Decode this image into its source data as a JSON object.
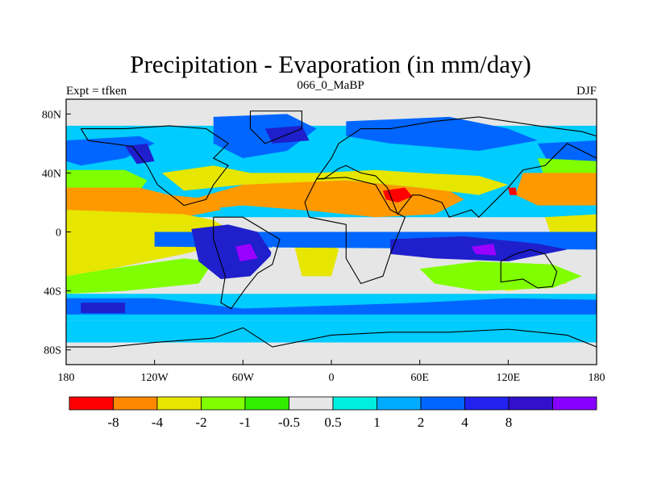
{
  "header": {
    "title": "Precipitation - Evaporation (in mm/day)",
    "left_label": "Expt = tfken",
    "center_label": "066_0_MaBP",
    "right_label": "DJF"
  },
  "map": {
    "lon_range": [
      -180,
      180
    ],
    "lat_range": [
      -90,
      90
    ],
    "x_ticks": [
      {
        "lon": -180,
        "label": "180"
      },
      {
        "lon": -120,
        "label": "120W"
      },
      {
        "lon": -60,
        "label": "60W"
      },
      {
        "lon": 0,
        "label": "0"
      },
      {
        "lon": 60,
        "label": "60E"
      },
      {
        "lon": 120,
        "label": "120E"
      },
      {
        "lon": 180,
        "label": "180"
      }
    ],
    "y_ticks": [
      {
        "lat": 80,
        "label": "80N"
      },
      {
        "lat": 40,
        "label": "40N"
      },
      {
        "lat": 0,
        "label": "0"
      },
      {
        "lat": -40,
        "label": "40S"
      },
      {
        "lat": -80,
        "label": "80S"
      }
    ],
    "background_color": "#e6e6e6",
    "regions": [
      {
        "color": "#00ccff",
        "poly": [
          [
            -180,
            72
          ],
          [
            180,
            72
          ],
          [
            180,
            10
          ],
          [
            -180,
            10
          ]
        ]
      },
      {
        "color": "#0066ff",
        "poly": [
          [
            -180,
            62
          ],
          [
            -130,
            65
          ],
          [
            -120,
            60
          ],
          [
            -140,
            50
          ],
          [
            -170,
            45
          ],
          [
            -180,
            48
          ]
        ]
      },
      {
        "color": "#0066ff",
        "poly": [
          [
            -80,
            78
          ],
          [
            -30,
            80
          ],
          [
            -10,
            70
          ],
          [
            -30,
            55
          ],
          [
            -60,
            50
          ],
          [
            -80,
            60
          ]
        ]
      },
      {
        "color": "#0066ff",
        "poly": [
          [
            10,
            75
          ],
          [
            80,
            78
          ],
          [
            120,
            70
          ],
          [
            140,
            62
          ],
          [
            100,
            55
          ],
          [
            40,
            60
          ],
          [
            10,
            65
          ]
        ]
      },
      {
        "color": "#0066ff",
        "poly": [
          [
            140,
            60
          ],
          [
            180,
            62
          ],
          [
            180,
            42
          ],
          [
            150,
            42
          ]
        ]
      },
      {
        "color": "#1f1fcc",
        "poly": [
          [
            -140,
            58
          ],
          [
            -125,
            60
          ],
          [
            -120,
            48
          ],
          [
            -132,
            46
          ]
        ]
      },
      {
        "color": "#1f1fcc",
        "poly": [
          [
            -45,
            70
          ],
          [
            -20,
            72
          ],
          [
            -15,
            62
          ],
          [
            -40,
            60
          ]
        ]
      },
      {
        "color": "#80ff00",
        "poly": [
          [
            -180,
            42
          ],
          [
            -140,
            42
          ],
          [
            -125,
            35
          ],
          [
            -130,
            28
          ],
          [
            -180,
            30
          ]
        ]
      },
      {
        "color": "#80ff00",
        "poly": [
          [
            140,
            50
          ],
          [
            180,
            48
          ],
          [
            180,
            38
          ],
          [
            145,
            36
          ]
        ]
      },
      {
        "color": "#ff9900",
        "poly": [
          [
            -180,
            30
          ],
          [
            -130,
            30
          ],
          [
            -110,
            25
          ],
          [
            -80,
            22
          ],
          [
            -75,
            15
          ],
          [
            -100,
            10
          ],
          [
            -180,
            15
          ]
        ]
      },
      {
        "color": "#ff9900",
        "poly": [
          [
            130,
            40
          ],
          [
            180,
            40
          ],
          [
            180,
            18
          ],
          [
            140,
            18
          ],
          [
            125,
            25
          ]
        ]
      },
      {
        "color": "#ff9900",
        "poly": [
          [
            -95,
            22
          ],
          [
            -60,
            32
          ],
          [
            -20,
            35
          ],
          [
            10,
            35
          ],
          [
            40,
            32
          ],
          [
            60,
            30
          ],
          [
            80,
            28
          ],
          [
            90,
            22
          ],
          [
            70,
            12
          ],
          [
            30,
            10
          ],
          [
            -10,
            14
          ],
          [
            -60,
            18
          ],
          [
            -90,
            15
          ]
        ]
      },
      {
        "color": "#e6e600",
        "poly": [
          [
            -115,
            40
          ],
          [
            -80,
            45
          ],
          [
            -55,
            40
          ],
          [
            -10,
            40
          ],
          [
            30,
            42
          ],
          [
            60,
            40
          ],
          [
            100,
            38
          ],
          [
            120,
            32
          ],
          [
            100,
            25
          ],
          [
            60,
            30
          ],
          [
            10,
            35
          ],
          [
            -60,
            32
          ],
          [
            -100,
            28
          ]
        ]
      },
      {
        "color": "#e6e600",
        "poly": [
          [
            -180,
            15
          ],
          [
            -100,
            12
          ],
          [
            -80,
            8
          ],
          [
            -70,
            2
          ],
          [
            -80,
            -10
          ],
          [
            -100,
            -15
          ],
          [
            -150,
            -25
          ],
          [
            -180,
            -30
          ]
        ]
      },
      {
        "color": "#e6e600",
        "poly": [
          [
            -25,
            -10
          ],
          [
            -5,
            -5
          ],
          [
            5,
            -12
          ],
          [
            0,
            -30
          ],
          [
            -20,
            -30
          ]
        ]
      },
      {
        "color": "#e6e600",
        "poly": [
          [
            100,
            -25
          ],
          [
            150,
            -25
          ],
          [
            160,
            -35
          ],
          [
            120,
            -40
          ],
          [
            100,
            -35
          ]
        ]
      },
      {
        "color": "#e6e600",
        "poly": [
          [
            145,
            10
          ],
          [
            180,
            12
          ],
          [
            180,
            -5
          ],
          [
            150,
            -5
          ]
        ]
      },
      {
        "color": "#80ff00",
        "poly": [
          [
            -180,
            -30
          ],
          [
            -150,
            -25
          ],
          [
            -100,
            -18
          ],
          [
            -80,
            -20
          ],
          [
            -90,
            -35
          ],
          [
            -140,
            -40
          ],
          [
            -180,
            -42
          ]
        ]
      },
      {
        "color": "#80ff00",
        "poly": [
          [
            60,
            -25
          ],
          [
            100,
            -20
          ],
          [
            150,
            -22
          ],
          [
            170,
            -30
          ],
          [
            150,
            -38
          ],
          [
            100,
            -40
          ],
          [
            70,
            -35
          ]
        ]
      },
      {
        "color": "#ff0000",
        "poly": [
          [
            35,
            28
          ],
          [
            50,
            30
          ],
          [
            55,
            24
          ],
          [
            45,
            20
          ],
          [
            37,
            22
          ]
        ]
      },
      {
        "color": "#ff0000",
        "poly": [
          [
            120,
            30
          ],
          [
            125,
            30
          ],
          [
            126,
            25
          ],
          [
            121,
            25
          ]
        ]
      },
      {
        "color": "#0066ff",
        "poly": [
          [
            -120,
            0
          ],
          [
            180,
            0
          ],
          [
            180,
            -12
          ],
          [
            -120,
            -10
          ]
        ]
      },
      {
        "color": "#1f1fcc",
        "poly": [
          [
            -95,
            2
          ],
          [
            -70,
            5
          ],
          [
            -50,
            0
          ],
          [
            -40,
            -15
          ],
          [
            -55,
            -30
          ],
          [
            -75,
            -32
          ],
          [
            -90,
            -20
          ]
        ]
      },
      {
        "color": "#1f1fcc",
        "poly": [
          [
            40,
            -5
          ],
          [
            90,
            -3
          ],
          [
            140,
            -8
          ],
          [
            160,
            -12
          ],
          [
            120,
            -20
          ],
          [
            70,
            -18
          ],
          [
            40,
            -15
          ]
        ]
      },
      {
        "color": "#9900ff",
        "poly": [
          [
            -65,
            -10
          ],
          [
            -55,
            -8
          ],
          [
            -50,
            -18
          ],
          [
            -62,
            -20
          ]
        ]
      },
      {
        "color": "#9900ff",
        "poly": [
          [
            95,
            -10
          ],
          [
            110,
            -8
          ],
          [
            112,
            -16
          ],
          [
            98,
            -15
          ]
        ]
      },
      {
        "color": "#e6e6e6",
        "poly": [
          [
            -40,
            -10
          ],
          [
            -30,
            -12
          ],
          [
            -25,
            -25
          ],
          [
            -35,
            -30
          ],
          [
            -42,
            -20
          ]
        ]
      },
      {
        "color": "#00ccff",
        "poly": [
          [
            -180,
            -42
          ],
          [
            180,
            -42
          ],
          [
            180,
            -60
          ],
          [
            -180,
            -60
          ]
        ]
      },
      {
        "color": "#0066ff",
        "poly": [
          [
            -180,
            -45
          ],
          [
            -120,
            -45
          ],
          [
            -60,
            -52
          ],
          [
            0,
            -50
          ],
          [
            60,
            -48
          ],
          [
            120,
            -45
          ],
          [
            180,
            -46
          ],
          [
            180,
            -56
          ],
          [
            -180,
            -56
          ]
        ]
      },
      {
        "color": "#1f1fcc",
        "poly": [
          [
            -170,
            -48
          ],
          [
            -140,
            -48
          ],
          [
            -140,
            -55
          ],
          [
            -170,
            -55
          ]
        ]
      },
      {
        "color": "#00ccff",
        "poly": [
          [
            -180,
            -60
          ],
          [
            180,
            -60
          ],
          [
            180,
            -75
          ],
          [
            -180,
            -75
          ]
        ]
      },
      {
        "color": "#e6e6e6",
        "poly": [
          [
            -180,
            -75
          ],
          [
            180,
            -75
          ],
          [
            180,
            -90
          ],
          [
            -180,
            -90
          ]
        ]
      },
      {
        "color": "#e6e6e6",
        "poly": [
          [
            -180,
            90
          ],
          [
            180,
            90
          ],
          [
            180,
            80
          ],
          [
            -180,
            80
          ]
        ]
      }
    ],
    "coastlines": [
      [
        [
          -170,
          70
        ],
        [
          -140,
          70
        ],
        [
          -110,
          72
        ],
        [
          -85,
          70
        ],
        [
          -70,
          60
        ],
        [
          -80,
          50
        ],
        [
          -70,
          45
        ],
        [
          -80,
          32
        ],
        [
          -85,
          22
        ],
        [
          -100,
          18
        ],
        [
          -105,
          22
        ],
        [
          -118,
          32
        ],
        [
          -125,
          45
        ],
        [
          -135,
          58
        ],
        [
          -150,
          60
        ],
        [
          -165,
          62
        ],
        [
          -170,
          70
        ]
      ],
      [
        [
          -80,
          10
        ],
        [
          -60,
          10
        ],
        [
          -35,
          -5
        ],
        [
          -40,
          -22
        ],
        [
          -50,
          -28
        ],
        [
          -58,
          -38
        ],
        [
          -68,
          -52
        ],
        [
          -75,
          -48
        ],
        [
          -72,
          -30
        ],
        [
          -80,
          -5
        ],
        [
          -80,
          10
        ]
      ],
      [
        [
          -55,
          82
        ],
        [
          -20,
          82
        ],
        [
          -20,
          70
        ],
        [
          -45,
          60
        ],
        [
          -55,
          70
        ],
        [
          -55,
          82
        ]
      ],
      [
        [
          -10,
          36
        ],
        [
          10,
          37
        ],
        [
          30,
          32
        ],
        [
          40,
          15
        ],
        [
          50,
          10
        ],
        [
          40,
          -15
        ],
        [
          35,
          -30
        ],
        [
          20,
          -35
        ],
        [
          10,
          -18
        ],
        [
          10,
          5
        ],
        [
          -15,
          10
        ],
        [
          -18,
          20
        ],
        [
          -10,
          36
        ]
      ],
      [
        [
          -10,
          36
        ],
        [
          -5,
          43
        ],
        [
          0,
          50
        ],
        [
          5,
          60
        ],
        [
          20,
          70
        ],
        [
          40,
          70
        ],
        [
          70,
          75
        ],
        [
          100,
          78
        ],
        [
          140,
          72
        ],
        [
          170,
          68
        ],
        [
          180,
          65
        ],
        [
          180,
          50
        ],
        [
          160,
          60
        ],
        [
          145,
          45
        ],
        [
          130,
          42
        ],
        [
          120,
          30
        ],
        [
          110,
          20
        ],
        [
          100,
          10
        ],
        [
          95,
          15
        ],
        [
          80,
          10
        ],
        [
          75,
          20
        ],
        [
          60,
          25
        ],
        [
          55,
          25
        ],
        [
          45,
          12
        ],
        [
          38,
          30
        ],
        [
          30,
          38
        ],
        [
          20,
          40
        ],
        [
          10,
          45
        ],
        [
          5,
          43
        ],
        [
          -5,
          36
        ],
        [
          -10,
          36
        ]
      ],
      [
        [
          115,
          -20
        ],
        [
          125,
          -15
        ],
        [
          135,
          -12
        ],
        [
          145,
          -15
        ],
        [
          153,
          -27
        ],
        [
          150,
          -37
        ],
        [
          140,
          -38
        ],
        [
          130,
          -32
        ],
        [
          115,
          -34
        ],
        [
          115,
          -20
        ]
      ],
      [
        [
          -180,
          -78
        ],
        [
          -150,
          -78
        ],
        [
          -120,
          -75
        ],
        [
          -80,
          -72
        ],
        [
          -60,
          -65
        ],
        [
          -40,
          -78
        ],
        [
          0,
          -70
        ],
        [
          40,
          -68
        ],
        [
          80,
          -68
        ],
        [
          120,
          -66
        ],
        [
          160,
          -70
        ],
        [
          180,
          -78
        ]
      ]
    ]
  },
  "colorbar": {
    "colors": [
      "#ff0000",
      "#ff8800",
      "#e6e600",
      "#80ff00",
      "#33ee00",
      "#e6e6e6",
      "#00eedd",
      "#00aaff",
      "#0066ff",
      "#2222ee",
      "#3311cc",
      "#8800ff"
    ],
    "labels": [
      "-8",
      "-4",
      "-2",
      "-1",
      "-0.5",
      "0.5",
      "1",
      "2",
      "4",
      "8"
    ]
  }
}
